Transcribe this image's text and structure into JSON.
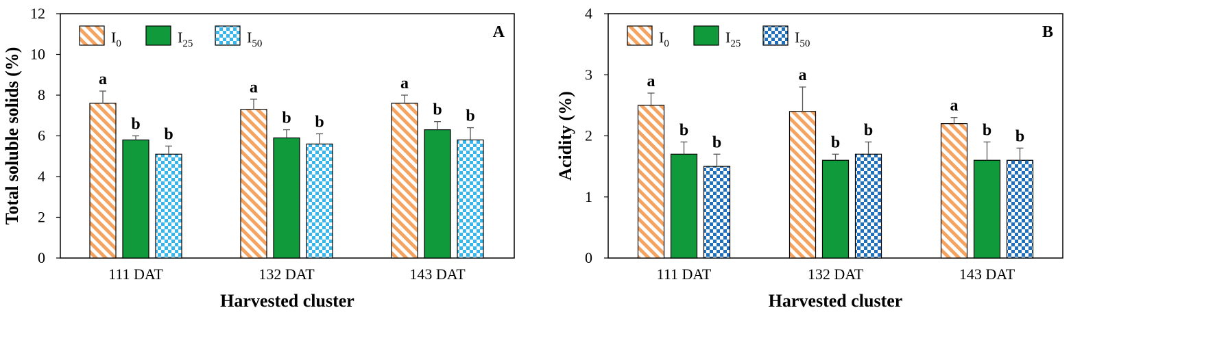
{
  "chart_data": [
    {
      "type": "bar",
      "panel_label": "A",
      "xlabel": "Harvested cluster",
      "ylabel": "Total soluble solids (%)",
      "ylim": [
        0,
        12
      ],
      "yticks": [
        0,
        2,
        4,
        6,
        8,
        10,
        12
      ],
      "categories": [
        "111 DAT",
        "132 DAT",
        "143 DAT"
      ],
      "series": [
        {
          "name": "I",
          "sub": "0",
          "pattern": "hatch",
          "values": [
            7.6,
            7.3,
            7.6
          ],
          "errors": [
            0.6,
            0.5,
            0.4
          ],
          "letters": [
            "a",
            "a",
            "a"
          ]
        },
        {
          "name": "I",
          "sub": "25",
          "pattern": "solid",
          "values": [
            5.8,
            5.9,
            6.3
          ],
          "errors": [
            0.2,
            0.4,
            0.4
          ],
          "letters": [
            "b",
            "b",
            "b"
          ]
        },
        {
          "name": "I",
          "sub": "50",
          "pattern": "check",
          "values": [
            5.1,
            5.6,
            5.8
          ],
          "errors": [
            0.4,
            0.5,
            0.6
          ],
          "letters": [
            "b",
            "b",
            "b"
          ]
        }
      ],
      "colors": {
        "hatch": "#f4a460",
        "solid": "#119a3b",
        "check": "#35b6ec"
      }
    },
    {
      "type": "bar",
      "panel_label": "B",
      "xlabel": "Harvested cluster",
      "ylabel": "Acidity (%)",
      "ylim": [
        0,
        4
      ],
      "yticks": [
        0,
        1,
        2,
        3,
        4
      ],
      "categories": [
        "111 DAT",
        "132 DAT",
        "143 DAT"
      ],
      "series": [
        {
          "name": "I",
          "sub": "0",
          "pattern": "hatch",
          "values": [
            2.5,
            2.4,
            2.2
          ],
          "errors": [
            0.2,
            0.4,
            0.1
          ],
          "letters": [
            "a",
            "a",
            "a"
          ]
        },
        {
          "name": "I",
          "sub": "25",
          "pattern": "solid",
          "values": [
            1.7,
            1.6,
            1.6
          ],
          "errors": [
            0.2,
            0.1,
            0.3
          ],
          "letters": [
            "b",
            "b",
            "b"
          ]
        },
        {
          "name": "I",
          "sub": "50",
          "pattern": "check",
          "values": [
            1.5,
            1.7,
            1.6
          ],
          "errors": [
            0.2,
            0.2,
            0.2
          ],
          "letters": [
            "b",
            "b",
            "b"
          ]
        }
      ],
      "colors": {
        "hatch": "#f4a460",
        "solid": "#119a3b",
        "check": "#1f6fbf"
      }
    }
  ]
}
